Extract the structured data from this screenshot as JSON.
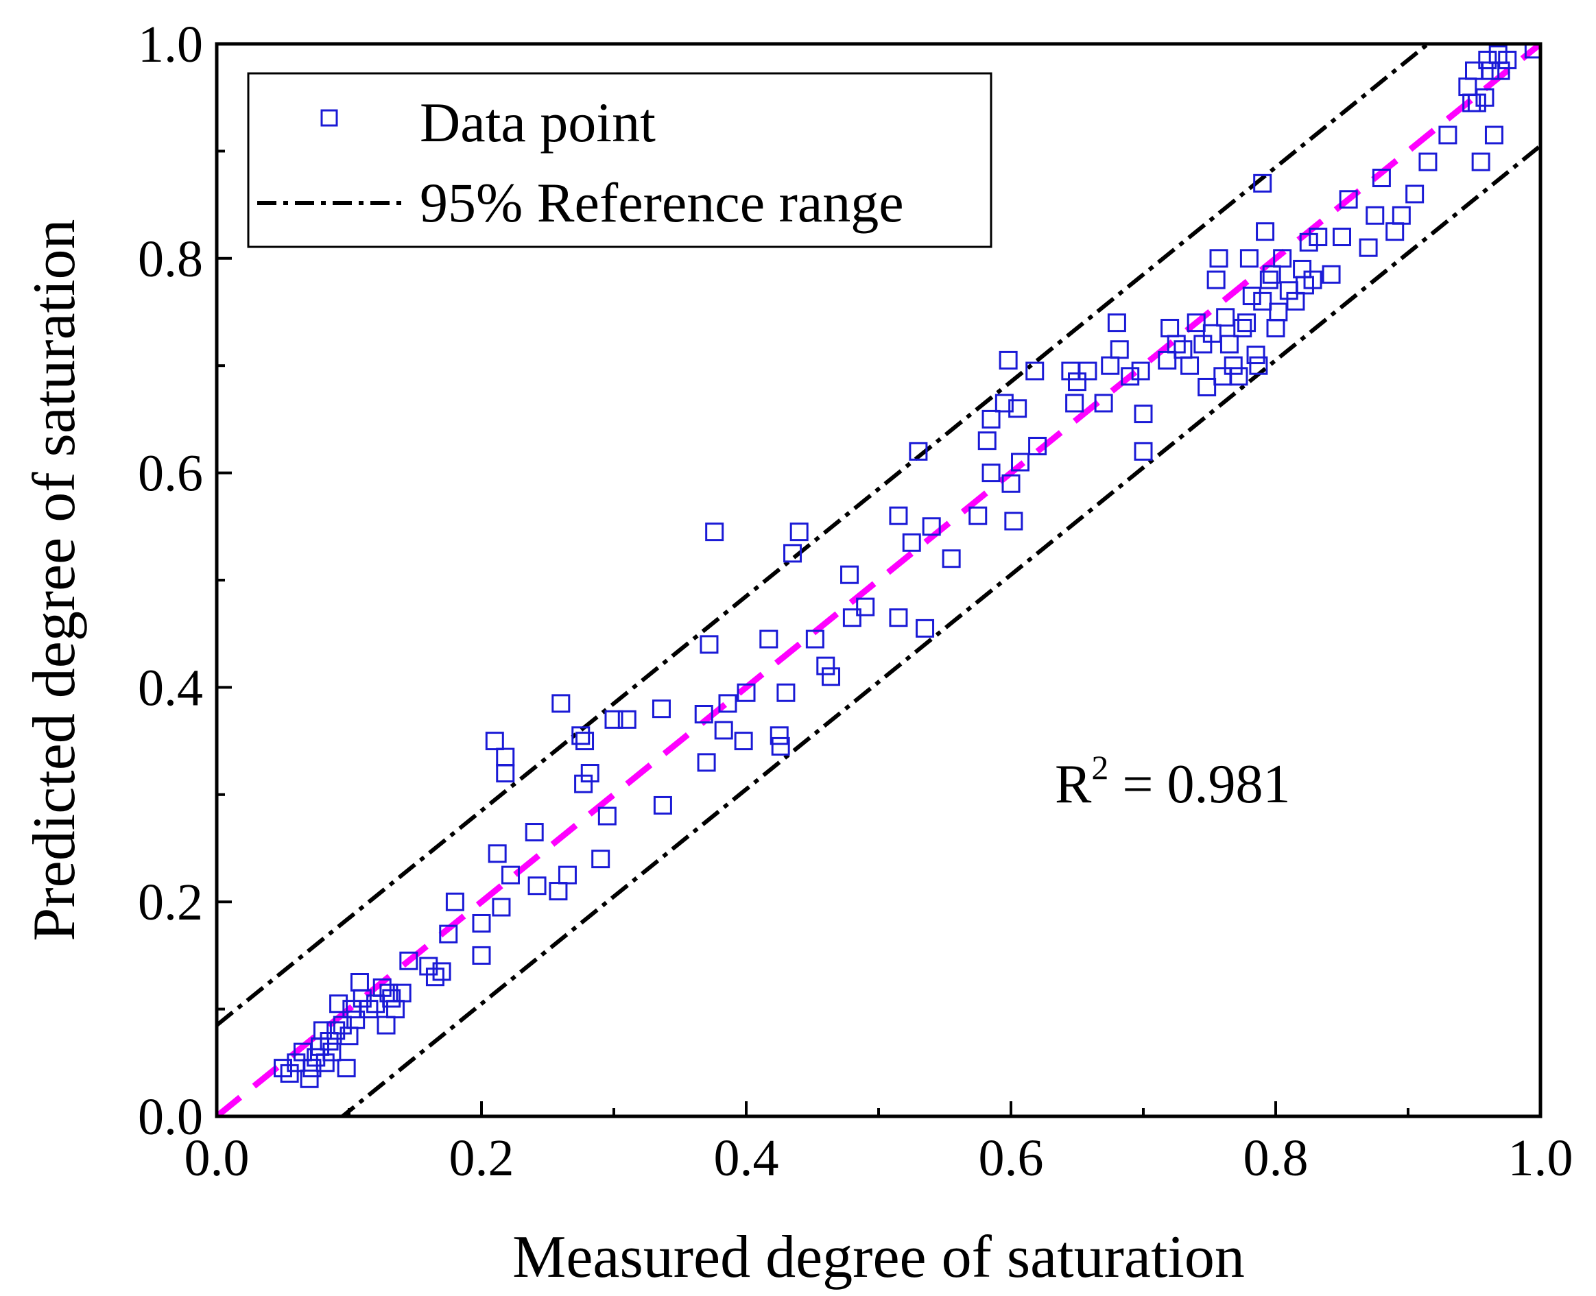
{
  "chart_data": {
    "type": "scatter",
    "title": "",
    "xlabel": "Measured degree of saturation",
    "ylabel": "Predicted degree of saturation",
    "xlim": [
      0.0,
      1.0
    ],
    "ylim": [
      0.0,
      1.0
    ],
    "xticks": [
      "0.0",
      "0.2",
      "0.4",
      "0.6",
      "0.8",
      "1.0"
    ],
    "yticks": [
      "0.0",
      "0.2",
      "0.4",
      "0.6",
      "0.8",
      "1.0"
    ],
    "grid": false,
    "legend": {
      "position": "top-left",
      "entries": [
        {
          "label": "Data point",
          "marker": "open-square"
        },
        {
          "label": "95% Reference range",
          "line": "dash-dot"
        }
      ]
    },
    "annotation": {
      "text_main": "R",
      "superscript": "2",
      "text_rest": " = 0.981"
    },
    "colors": {
      "points": "#1a1ad6",
      "fit_line": "#ff00ff",
      "reference": "#000000"
    },
    "fit_line": {
      "slope": 1.0,
      "intercept": 0.0,
      "style": "dashed"
    },
    "reference_range": {
      "upper_intercept": 0.085,
      "lower_intercept": -0.095,
      "slope": 1.0
    },
    "series": [
      {
        "name": "Data point",
        "points": [
          [
            0.05,
            0.045
          ],
          [
            0.055,
            0.04
          ],
          [
            0.06,
            0.05
          ],
          [
            0.065,
            0.06
          ],
          [
            0.07,
            0.035
          ],
          [
            0.072,
            0.045
          ],
          [
            0.075,
            0.055
          ],
          [
            0.078,
            0.065
          ],
          [
            0.08,
            0.08
          ],
          [
            0.082,
            0.05
          ],
          [
            0.085,
            0.07
          ],
          [
            0.087,
            0.06
          ],
          [
            0.09,
            0.08
          ],
          [
            0.092,
            0.105
          ],
          [
            0.095,
            0.085
          ],
          [
            0.098,
            0.045
          ],
          [
            0.1,
            0.075
          ],
          [
            0.102,
            0.1
          ],
          [
            0.105,
            0.09
          ],
          [
            0.108,
            0.125
          ],
          [
            0.11,
            0.11
          ],
          [
            0.115,
            0.1
          ],
          [
            0.12,
            0.105
          ],
          [
            0.125,
            0.12
          ],
          [
            0.128,
            0.085
          ],
          [
            0.13,
            0.115
          ],
          [
            0.132,
            0.11
          ],
          [
            0.135,
            0.1
          ],
          [
            0.14,
            0.115
          ],
          [
            0.145,
            0.145
          ],
          [
            0.16,
            0.14
          ],
          [
            0.165,
            0.13
          ],
          [
            0.17,
            0.135
          ],
          [
            0.175,
            0.17
          ],
          [
            0.18,
            0.2
          ],
          [
            0.2,
            0.18
          ],
          [
            0.2,
            0.15
          ],
          [
            0.21,
            0.35
          ],
          [
            0.212,
            0.245
          ],
          [
            0.215,
            0.195
          ],
          [
            0.218,
            0.335
          ],
          [
            0.218,
            0.32
          ],
          [
            0.222,
            0.225
          ],
          [
            0.24,
            0.265
          ],
          [
            0.242,
            0.215
          ],
          [
            0.258,
            0.21
          ],
          [
            0.26,
            0.385
          ],
          [
            0.265,
            0.225
          ],
          [
            0.275,
            0.355
          ],
          [
            0.277,
            0.31
          ],
          [
            0.278,
            0.35
          ],
          [
            0.282,
            0.32
          ],
          [
            0.29,
            0.24
          ],
          [
            0.295,
            0.28
          ],
          [
            0.3,
            0.37
          ],
          [
            0.31,
            0.37
          ],
          [
            0.336,
            0.38
          ],
          [
            0.337,
            0.29
          ],
          [
            0.368,
            0.375
          ],
          [
            0.37,
            0.33
          ],
          [
            0.372,
            0.44
          ],
          [
            0.376,
            0.545
          ],
          [
            0.383,
            0.36
          ],
          [
            0.386,
            0.385
          ],
          [
            0.398,
            0.35
          ],
          [
            0.4,
            0.395
          ],
          [
            0.417,
            0.445
          ],
          [
            0.425,
            0.355
          ],
          [
            0.426,
            0.345
          ],
          [
            0.43,
            0.395
          ],
          [
            0.435,
            0.525
          ],
          [
            0.44,
            0.545
          ],
          [
            0.452,
            0.445
          ],
          [
            0.46,
            0.42
          ],
          [
            0.464,
            0.41
          ],
          [
            0.478,
            0.505
          ],
          [
            0.48,
            0.465
          ],
          [
            0.49,
            0.475
          ],
          [
            0.515,
            0.465
          ],
          [
            0.515,
            0.56
          ],
          [
            0.525,
            0.535
          ],
          [
            0.53,
            0.62
          ],
          [
            0.535,
            0.455
          ],
          [
            0.54,
            0.55
          ],
          [
            0.555,
            0.52
          ],
          [
            0.575,
            0.56
          ],
          [
            0.582,
            0.63
          ],
          [
            0.585,
            0.65
          ],
          [
            0.585,
            0.6
          ],
          [
            0.595,
            0.665
          ],
          [
            0.598,
            0.705
          ],
          [
            0.6,
            0.59
          ],
          [
            0.602,
            0.555
          ],
          [
            0.605,
            0.66
          ],
          [
            0.607,
            0.61
          ],
          [
            0.618,
            0.695
          ],
          [
            0.62,
            0.625
          ],
          [
            0.645,
            0.695
          ],
          [
            0.648,
            0.665
          ],
          [
            0.65,
            0.685
          ],
          [
            0.658,
            0.695
          ],
          [
            0.67,
            0.665
          ],
          [
            0.675,
            0.7
          ],
          [
            0.68,
            0.74
          ],
          [
            0.682,
            0.715
          ],
          [
            0.69,
            0.69
          ],
          [
            0.698,
            0.695
          ],
          [
            0.7,
            0.62
          ],
          [
            0.7,
            0.655
          ],
          [
            0.718,
            0.705
          ],
          [
            0.72,
            0.735
          ],
          [
            0.725,
            0.72
          ],
          [
            0.73,
            0.715
          ],
          [
            0.735,
            0.7
          ],
          [
            0.74,
            0.74
          ],
          [
            0.745,
            0.72
          ],
          [
            0.748,
            0.68
          ],
          [
            0.752,
            0.73
          ],
          [
            0.755,
            0.78
          ],
          [
            0.757,
            0.8
          ],
          [
            0.76,
            0.69
          ],
          [
            0.762,
            0.745
          ],
          [
            0.765,
            0.72
          ],
          [
            0.768,
            0.7
          ],
          [
            0.772,
            0.69
          ],
          [
            0.775,
            0.735
          ],
          [
            0.778,
            0.74
          ],
          [
            0.78,
            0.8
          ],
          [
            0.782,
            0.765
          ],
          [
            0.785,
            0.71
          ],
          [
            0.787,
            0.7
          ],
          [
            0.79,
            0.76
          ],
          [
            0.792,
            0.825
          ],
          [
            0.795,
            0.78
          ],
          [
            0.797,
            0.785
          ],
          [
            0.8,
            0.735
          ],
          [
            0.802,
            0.75
          ],
          [
            0.805,
            0.8
          ],
          [
            0.81,
            0.77
          ],
          [
            0.815,
            0.76
          ],
          [
            0.82,
            0.79
          ],
          [
            0.822,
            0.775
          ],
          [
            0.825,
            0.815
          ],
          [
            0.828,
            0.78
          ],
          [
            0.832,
            0.82
          ],
          [
            0.842,
            0.785
          ],
          [
            0.85,
            0.82
          ],
          [
            0.855,
            0.855
          ],
          [
            0.87,
            0.81
          ],
          [
            0.875,
            0.84
          ],
          [
            0.88,
            0.875
          ],
          [
            0.89,
            0.825
          ],
          [
            0.895,
            0.84
          ],
          [
            0.905,
            0.86
          ],
          [
            0.915,
            0.89
          ],
          [
            0.93,
            0.915
          ],
          [
            0.945,
            0.96
          ],
          [
            0.948,
            0.945
          ],
          [
            0.95,
            0.975
          ],
          [
            0.952,
            0.945
          ],
          [
            0.955,
            0.89
          ],
          [
            0.958,
            0.95
          ],
          [
            0.96,
            0.985
          ],
          [
            0.962,
            0.975
          ],
          [
            0.965,
            0.915
          ],
          [
            0.968,
            0.99
          ],
          [
            0.97,
            0.975
          ],
          [
            0.975,
            0.985
          ],
          [
            0.995,
            0.995
          ],
          [
            0.79,
            0.87
          ]
        ]
      }
    ]
  }
}
